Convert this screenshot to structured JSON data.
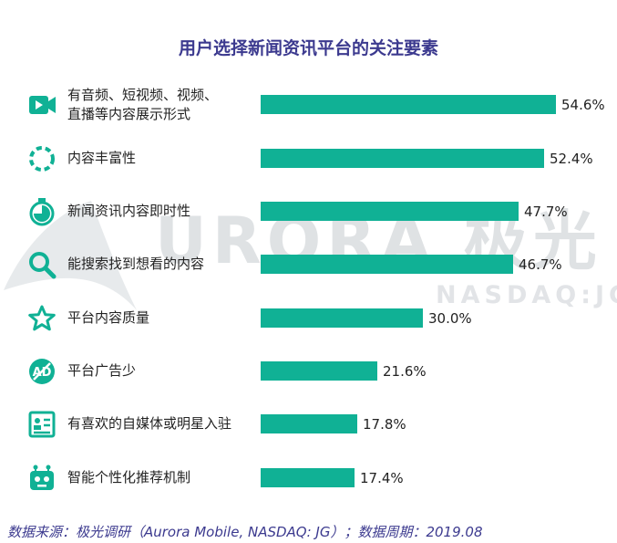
{
  "title": "用户选择新闻资讯平台的关注要素",
  "watermark": {
    "brand": "URORA 极光",
    "ticker": "NASDAQ:JG"
  },
  "source_note": "数据来源：极光调研（Aurora Mobile, NASDAQ: JG）；数据周期：2019.08",
  "chart_data": {
    "type": "bar",
    "orientation": "horizontal",
    "title": "用户选择新闻资讯平台的关注要素",
    "categories": [
      [
        "有音频、短视频、视频、",
        "直播等内容展示形式"
      ],
      [
        "内容丰富性"
      ],
      [
        "新闻资讯内容即时性"
      ],
      [
        "能搜索找到想看的内容"
      ],
      [
        "平台内容质量"
      ],
      [
        "平台广告少"
      ],
      [
        "有喜欢的自媒体或明星入驻"
      ],
      [
        "智能个性化推荐机制"
      ]
    ],
    "values": [
      54.6,
      52.4,
      47.7,
      46.7,
      30.0,
      21.6,
      17.8,
      17.4
    ],
    "value_labels": [
      "54.6%",
      "52.4%",
      "47.7%",
      "46.7%",
      "30.0%",
      "21.6%",
      "17.8%",
      "17.4%"
    ],
    "xlim": [
      0,
      55
    ],
    "grid": false,
    "legend": "none",
    "bar_color": "#10b195",
    "icon_color": "#10b195",
    "title_color": "#3c3a8f",
    "icons": [
      "video-camera-icon",
      "dashed-circle-icon",
      "stopwatch-icon",
      "search-icon",
      "star-icon",
      "no-ad-icon",
      "profile-card-icon",
      "robot-icon"
    ]
  }
}
